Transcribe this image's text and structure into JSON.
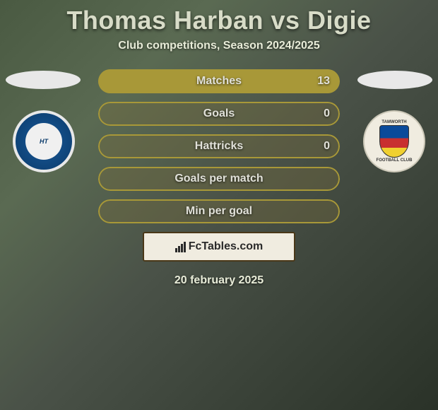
{
  "title": "Thomas Harban vs Digie",
  "subtitle": "Club competitions, Season 2024/2025",
  "date": "20 february 2025",
  "watermark": "FcTables.com",
  "colors": {
    "barBorder": "#a89838",
    "barFill": "#a89838",
    "barEmpty": "rgba(120,110,60,0.35)"
  },
  "left": {
    "club": "FC Halifax Town",
    "clubShort": "HT",
    "logoBg": "#0a3a6a"
  },
  "right": {
    "club": "Tamworth",
    "logoBg": "#f0ece0"
  },
  "stats": [
    {
      "label": "Matches",
      "leftVal": null,
      "rightVal": "13",
      "leftPct": 0,
      "rightPct": 100
    },
    {
      "label": "Goals",
      "leftVal": null,
      "rightVal": "0",
      "leftPct": 0,
      "rightPct": 0
    },
    {
      "label": "Hattricks",
      "leftVal": null,
      "rightVal": "0",
      "leftPct": 0,
      "rightPct": 0
    },
    {
      "label": "Goals per match",
      "leftVal": null,
      "rightVal": null,
      "leftPct": 0,
      "rightPct": 0
    },
    {
      "label": "Min per goal",
      "leftVal": null,
      "rightVal": null,
      "leftPct": 0,
      "rightPct": 0
    }
  ]
}
